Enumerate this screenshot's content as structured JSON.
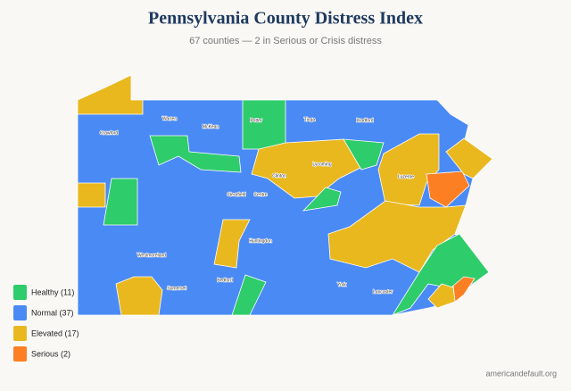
{
  "header": {
    "title": "Pennsylvania County Distress Index",
    "subtitle": "67 counties — 2 in Serious or Crisis distress"
  },
  "map": {
    "counties": [
      "Warren",
      "McKean",
      "Potter",
      "Tioga",
      "Bradford",
      "Crawford",
      "Lycoming",
      "Clinton",
      "Luzerne",
      "Clearfield",
      "Centre",
      "Huntingdon",
      "Westmoreland",
      "Somerset",
      "Bedford",
      "York",
      "Lancaster"
    ]
  },
  "legend": [
    {
      "label": "Healthy (11)",
      "color": "#2ecc6a"
    },
    {
      "label": "Normal (37)",
      "color": "#4a8af4"
    },
    {
      "label": "Elevated (17)",
      "color": "#e9b81f"
    },
    {
      "label": "Serious (2)",
      "color": "#fd7f23"
    }
  ],
  "source": "americandefault.org"
}
